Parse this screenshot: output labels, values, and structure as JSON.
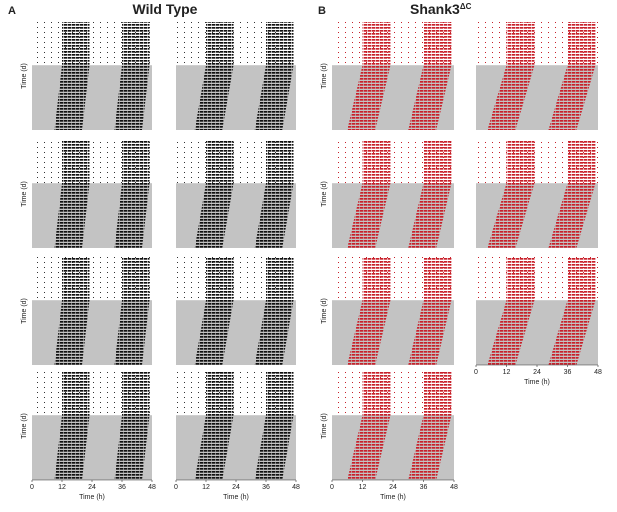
{
  "panels": [
    {
      "label": "A",
      "title": "Wild Type"
    },
    {
      "label": "B",
      "title": "Shank3",
      "title_superscript": "ΔC"
    }
  ],
  "y_axis_label": "Time (d)",
  "x_axis_label": "Time (h)",
  "xlim": [
    0,
    48
  ],
  "xticks": [
    0,
    12,
    24,
    36,
    48
  ]
}
